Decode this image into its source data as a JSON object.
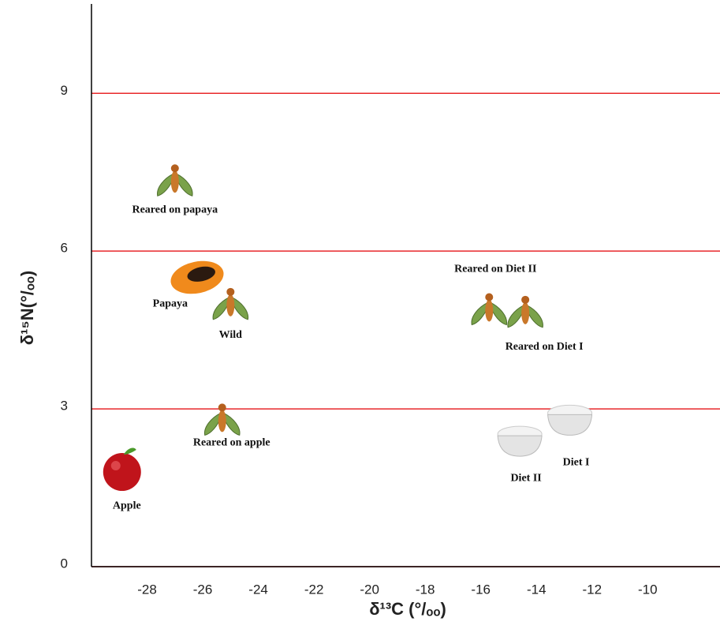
{
  "chart_data": {
    "type": "scatter",
    "x_label": "δ¹³C (°/ₒₒ)",
    "y_label": "δ¹⁵N(°/ₒₒ)",
    "labels": [
      "Reared on papaya",
      "Papaya",
      "Wild",
      "Reared on Diet II",
      "Reared on Diet I",
      "Reared on apple",
      "Apple",
      "Diet II",
      "Diet I"
    ],
    "x": [
      -27.0,
      -26.2,
      -25.0,
      -15.7,
      -14.4,
      -25.3,
      -28.9,
      -14.6,
      -12.8
    ],
    "values": [
      7.35,
      5.5,
      5.0,
      4.9,
      4.85,
      2.8,
      1.8,
      2.4,
      2.8
    ],
    "xlim": [
      -30,
      -7.4
    ],
    "ylim": [
      0,
      10.7
    ],
    "xticks": [
      -28,
      -26,
      -24,
      -22,
      -20,
      -18,
      -16,
      -14,
      -12,
      -10
    ],
    "yticks": [
      0,
      3,
      6,
      9
    ],
    "grid": true,
    "grid_color": "#e8282b"
  }
}
